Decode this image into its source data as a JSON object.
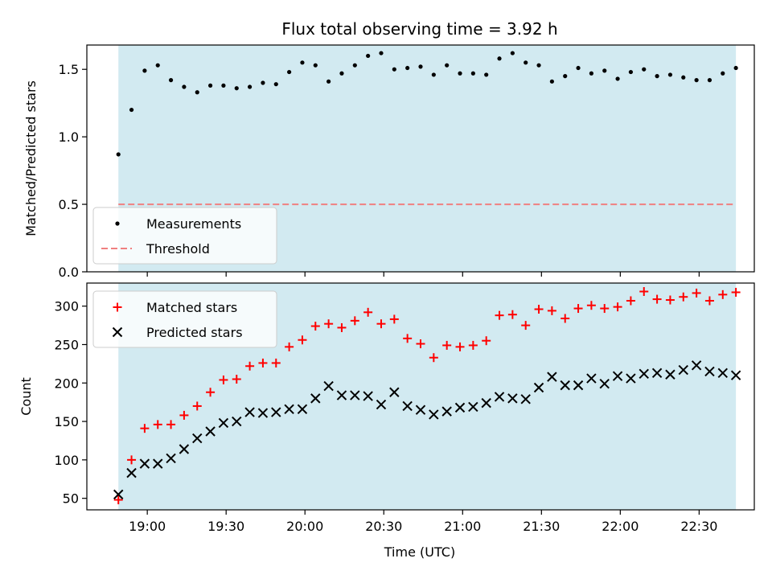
{
  "chart_data": [
    {
      "type": "scatter",
      "title": "Flux total observing time = 3.92 h",
      "xlabel": "",
      "ylabel": "Matched/Predicted stars",
      "ylim": [
        0,
        1.68
      ],
      "yticks": [
        0.0,
        0.5,
        1.0,
        1.5
      ],
      "ytick_labels": [
        "0.0",
        "0.5",
        "1.0",
        "1.5"
      ],
      "xlim_minutes": [
        1117,
        1371
      ],
      "observing_window_minutes": [
        1129,
        1364
      ],
      "observing_window_color": "#add8e6",
      "threshold": 0.5,
      "threshold_color": "#f08080",
      "legend": {
        "placement": "lower-left",
        "entries": [
          "Measurements",
          "Threshold"
        ]
      },
      "series": [
        {
          "name": "Measurements",
          "marker": "dot",
          "color": "#000000",
          "x": [
            1129,
            1134,
            1139,
            1144,
            1149,
            1154,
            1159,
            1164,
            1169,
            1174,
            1179,
            1184,
            1189,
            1194,
            1199,
            1204,
            1209,
            1214,
            1219,
            1224,
            1229,
            1234,
            1239,
            1244,
            1249,
            1254,
            1259,
            1264,
            1269,
            1274,
            1279,
            1284,
            1289,
            1294,
            1299,
            1304,
            1309,
            1314,
            1319,
            1324,
            1329,
            1334,
            1339,
            1344,
            1349,
            1354,
            1359,
            1364
          ],
          "y": [
            0.87,
            1.2,
            1.49,
            1.53,
            1.42,
            1.37,
            1.33,
            1.38,
            1.38,
            1.36,
            1.37,
            1.4,
            1.39,
            1.48,
            1.55,
            1.53,
            1.41,
            1.47,
            1.53,
            1.6,
            1.62,
            1.5,
            1.51,
            1.52,
            1.46,
            1.53,
            1.47,
            1.47,
            1.46,
            1.58,
            1.62,
            1.55,
            1.53,
            1.41,
            1.45,
            1.51,
            1.47,
            1.49,
            1.43,
            1.48,
            1.5,
            1.45,
            1.46,
            1.44,
            1.42,
            1.42,
            1.47,
            1.51
          ]
        }
      ]
    },
    {
      "type": "scatter",
      "title": "",
      "xlabel": "Time (UTC)",
      "ylabel": "Count",
      "ylim": [
        35,
        330
      ],
      "yticks": [
        50,
        100,
        150,
        200,
        250,
        300
      ],
      "ytick_labels": [
        "50",
        "100",
        "150",
        "200",
        "250",
        "300"
      ],
      "xlim_minutes": [
        1117,
        1371
      ],
      "xticks_minutes": [
        1140,
        1170,
        1200,
        1230,
        1260,
        1290,
        1320,
        1350
      ],
      "xtick_labels": [
        "19:00",
        "19:30",
        "20:00",
        "20:30",
        "21:00",
        "21:30",
        "22:00",
        "22:30"
      ],
      "observing_window_minutes": [
        1129,
        1364
      ],
      "observing_window_color": "#add8e6",
      "legend": {
        "placement": "upper-left",
        "entries": [
          "Matched stars",
          "Predicted stars"
        ]
      },
      "series": [
        {
          "name": "Matched stars",
          "marker": "plus",
          "color": "#ff0000",
          "x": [
            1129,
            1134,
            1139,
            1144,
            1149,
            1154,
            1159,
            1164,
            1169,
            1174,
            1179,
            1184,
            1189,
            1194,
            1199,
            1204,
            1209,
            1214,
            1219,
            1224,
            1229,
            1234,
            1239,
            1244,
            1249,
            1254,
            1259,
            1264,
            1269,
            1274,
            1279,
            1284,
            1289,
            1294,
            1299,
            1304,
            1309,
            1314,
            1319,
            1324,
            1329,
            1334,
            1339,
            1344,
            1349,
            1354,
            1359,
            1364
          ],
          "y": [
            48,
            100,
            141,
            146,
            146,
            158,
            170,
            188,
            204,
            205,
            222,
            226,
            226,
            247,
            256,
            274,
            277,
            272,
            281,
            292,
            277,
            283,
            258,
            251,
            233,
            249,
            247,
            249,
            255,
            288,
            289,
            275,
            296,
            294,
            284,
            297,
            301,
            297,
            299,
            307,
            319,
            309,
            308,
            312,
            317,
            307,
            315,
            318
          ]
        },
        {
          "name": "Predicted stars",
          "marker": "x",
          "color": "#000000",
          "x": [
            1129,
            1134,
            1139,
            1144,
            1149,
            1154,
            1159,
            1164,
            1169,
            1174,
            1179,
            1184,
            1189,
            1194,
            1199,
            1204,
            1209,
            1214,
            1219,
            1224,
            1229,
            1234,
            1239,
            1244,
            1249,
            1254,
            1259,
            1264,
            1269,
            1274,
            1279,
            1284,
            1289,
            1294,
            1299,
            1304,
            1309,
            1314,
            1319,
            1324,
            1329,
            1334,
            1339,
            1344,
            1349,
            1354,
            1359,
            1364
          ],
          "y": [
            55,
            83,
            95,
            95,
            102,
            114,
            128,
            137,
            148,
            150,
            162,
            161,
            162,
            166,
            166,
            180,
            196,
            184,
            184,
            183,
            172,
            188,
            170,
            165,
            159,
            163,
            168,
            169,
            174,
            182,
            180,
            179,
            194,
            208,
            197,
            197,
            206,
            199,
            209,
            206,
            212,
            213,
            211,
            217,
            223,
            215,
            213,
            210
          ]
        }
      ]
    }
  ]
}
